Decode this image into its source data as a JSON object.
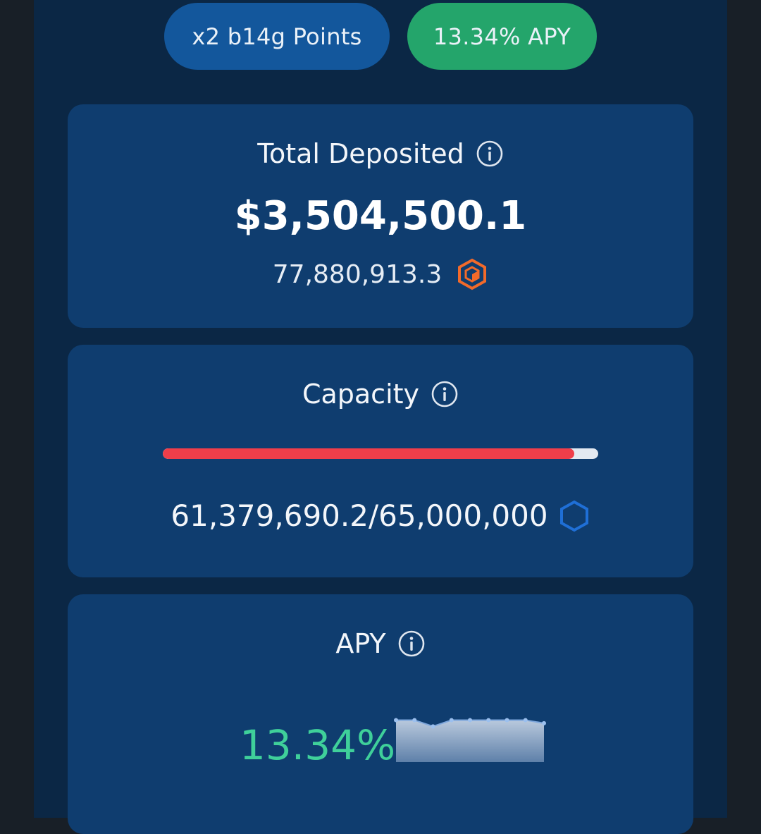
{
  "header": {
    "points_badge": "x2 b14g Points",
    "apy_badge": "13.34% APY"
  },
  "total_deposited": {
    "title": "Total Deposited",
    "usd_value": "$3,504,500.1",
    "token_amount": "77,880,913.3",
    "token_icon": "orange-cube-token-icon",
    "info_icon": "info-icon"
  },
  "capacity": {
    "title": "Capacity",
    "amount": "61,379,690.2/65,000,000",
    "fill_fraction": 0.9443,
    "token_icon": "blue-hexagon-token-icon",
    "info_icon": "info-icon"
  },
  "apy": {
    "title": "APY",
    "value": "13.34%",
    "info_icon": "info-icon",
    "sparkline": [
      13.4,
      13.4,
      13.2,
      13.4,
      13.4,
      13.4,
      13.4,
      13.4,
      13.3
    ]
  },
  "colors": {
    "page_bg": "#181f27",
    "panel_bg": "#0b2745",
    "card_bg": "#0f3d6f",
    "points_badge": "#13579c",
    "apy_badge": "#24a56b",
    "capacity_fill": "#ef3e4a",
    "apy_text": "#3fd09a",
    "token_orange": "#f26a2a",
    "token_blue": "#1f6fd6"
  }
}
